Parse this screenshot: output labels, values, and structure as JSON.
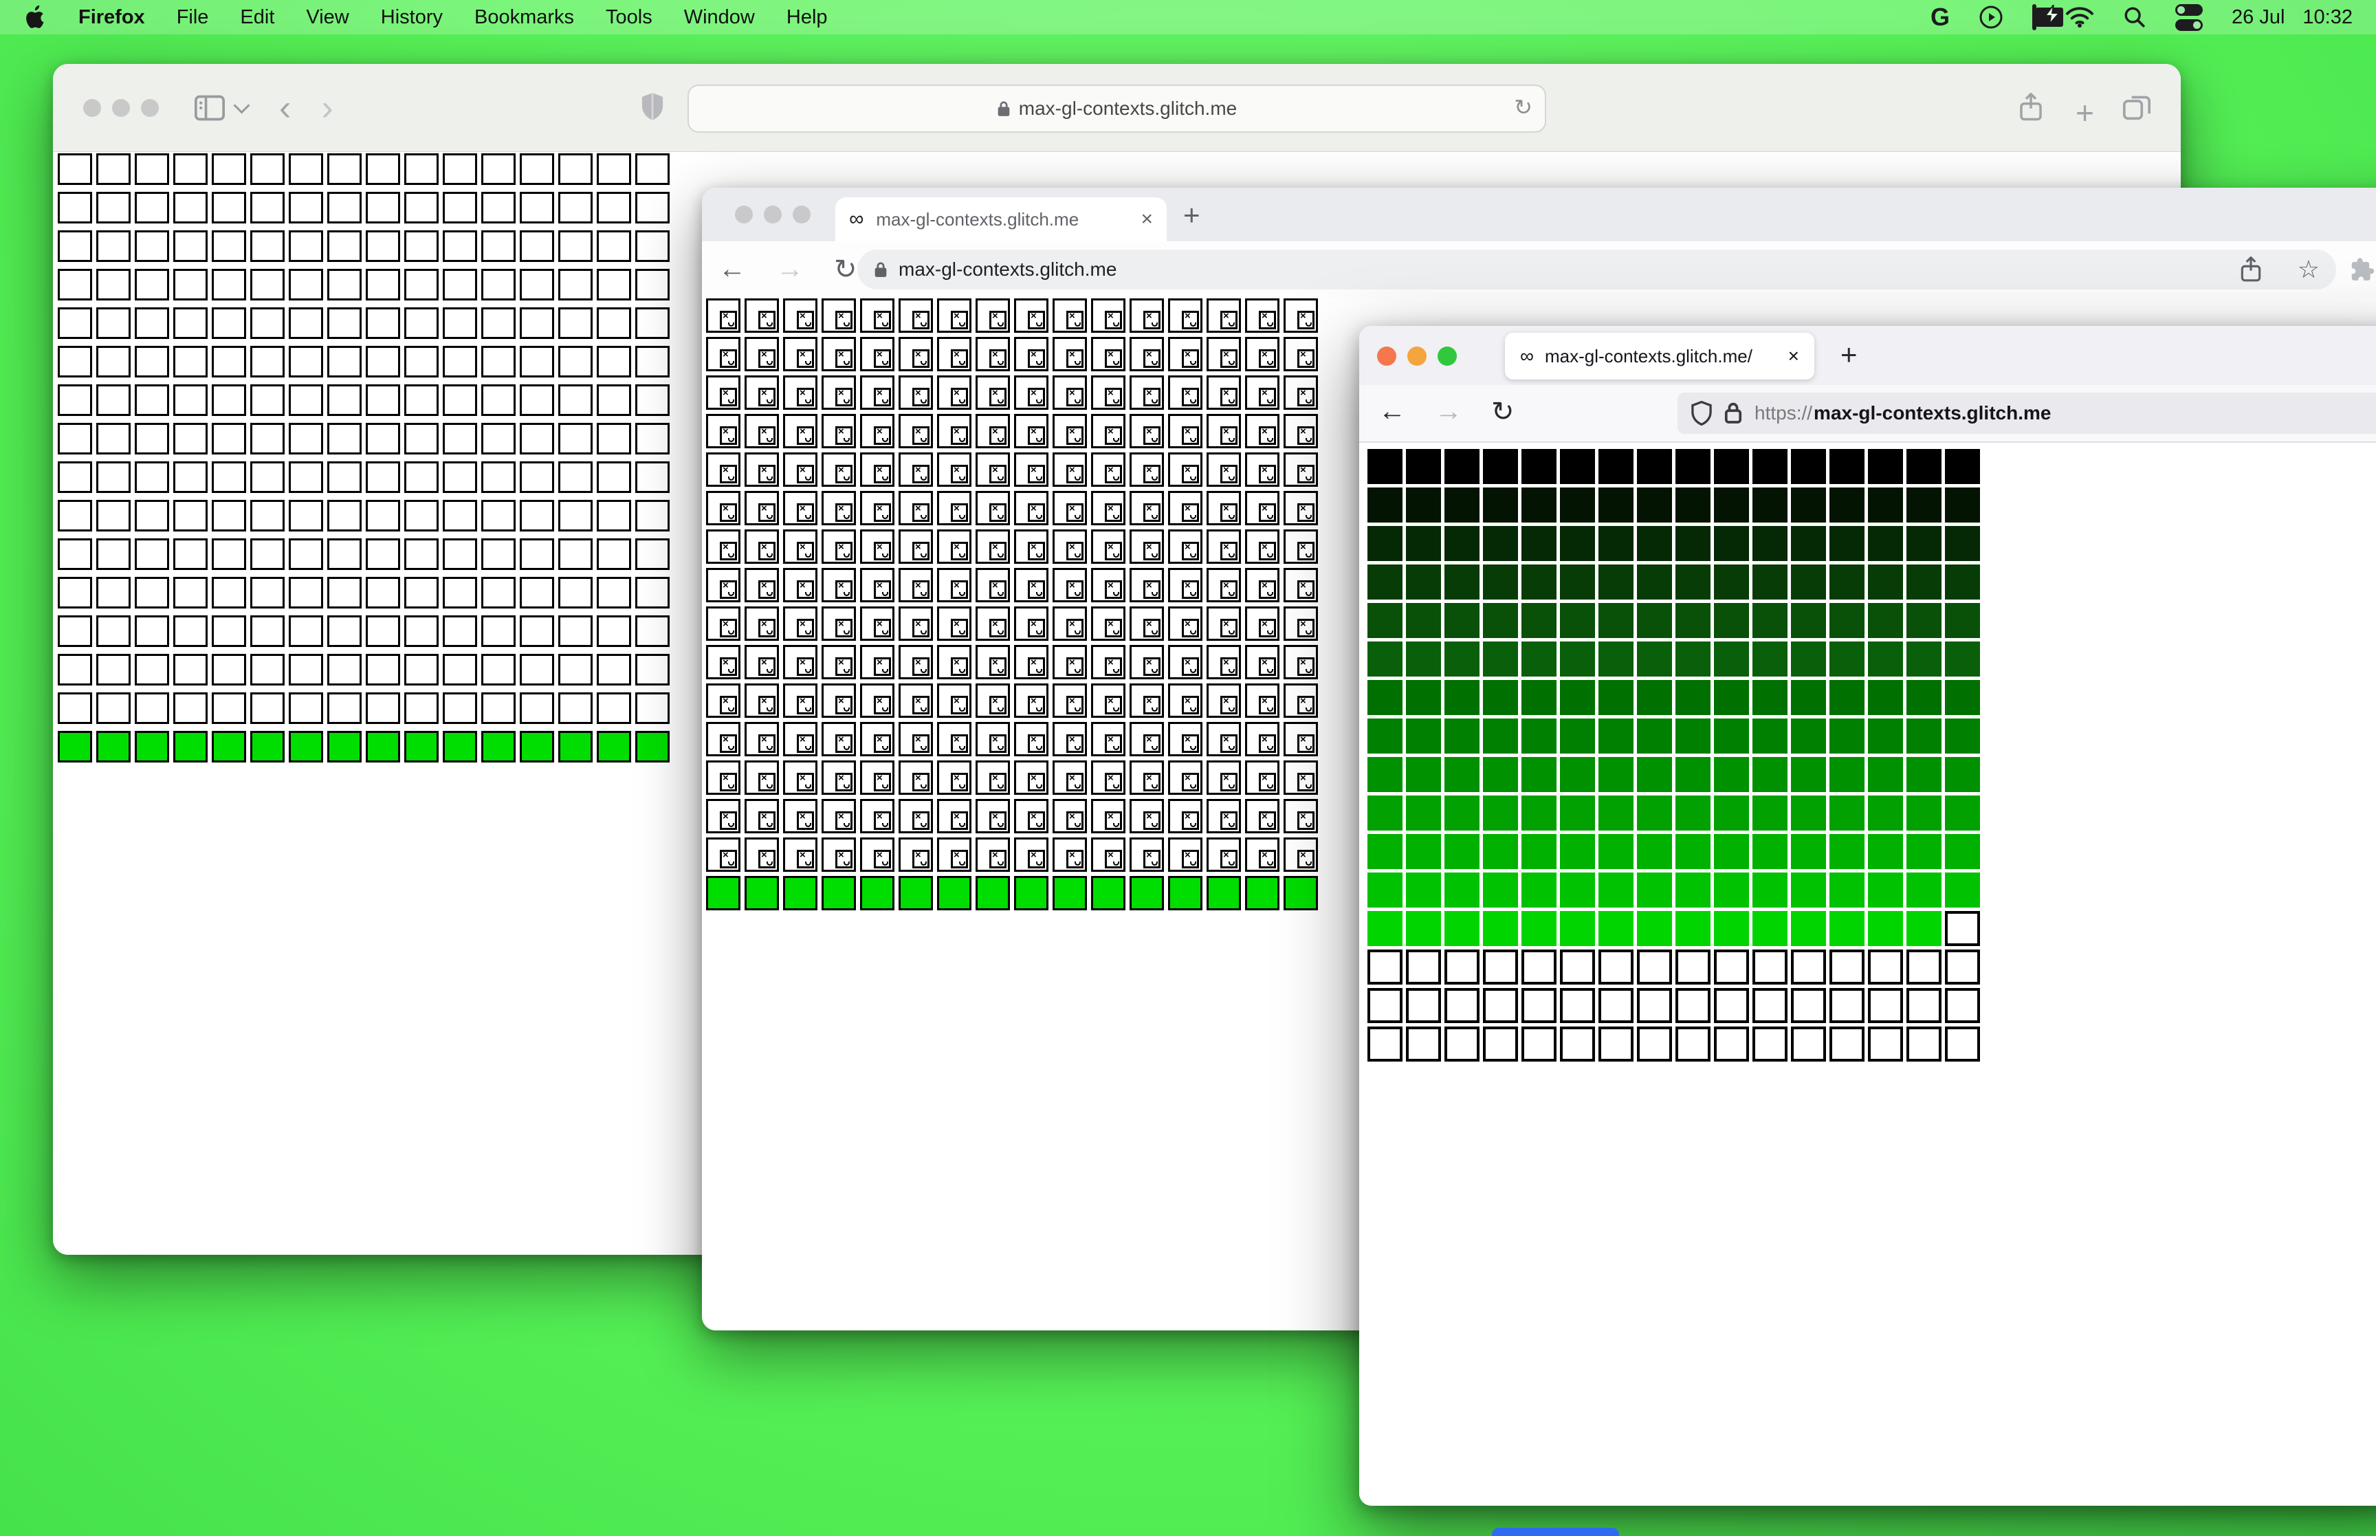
{
  "menu_bar": {
    "app_name": "Firefox",
    "items": [
      "File",
      "Edit",
      "View",
      "History",
      "Bookmarks",
      "Tools",
      "Window",
      "Help"
    ],
    "google_letter": "G",
    "date": "26 Jul",
    "time": "10:32",
    "status_icon_names": [
      "google-icon",
      "play-circle-icon",
      "battery-charging-icon",
      "wifi-icon",
      "search-icon",
      "control-center-icon"
    ]
  },
  "safari": {
    "url": "max-gl-contexts.glitch.me",
    "reload_glyph": "↻",
    "back_glyph": "‹",
    "forward_glyph": "›",
    "new_tab_glyph": "+",
    "traffic_light_color": "#c9c9c9"
  },
  "chrome": {
    "tab_title": "max-gl-contexts.glitch.me",
    "tab_favicon": "∞",
    "tab_close_glyph": "×",
    "new_tab_glyph": "+",
    "url": "max-gl-contexts.glitch.me",
    "back_glyph": "←",
    "forward_glyph": "→",
    "reload_glyph": "↻",
    "bookmark_star_glyph": "☆",
    "traffic_light_color": "#c9c9cb"
  },
  "firefox": {
    "tab_title": "max-gl-contexts.glitch.me/",
    "tab_favicon": "∞",
    "tab_close_glyph": "×",
    "new_tab_glyph": "+",
    "url_scheme": "https://",
    "url_domain": "max-gl-contexts.glitch.me",
    "back_glyph": "←",
    "forward_glyph": "→",
    "reload_glyph": "↻",
    "traffic_light_colors": [
      "#f4774e",
      "#f4a53d",
      "#31c83e"
    ]
  },
  "grids": {
    "safari": {
      "columns": 16,
      "rows": 16,
      "empty_rows": 15,
      "green_row_index": 15,
      "green_color": "#00dd00",
      "empty_fill": "#ffffff",
      "cell_border": "#000000"
    },
    "chrome": {
      "columns": 16,
      "rows": 16,
      "broken_image_rows": 15,
      "green_row_index": 15,
      "green_color": "#00dd00",
      "broken_glyph": "×"
    },
    "firefox": {
      "columns": 16,
      "rows": 16,
      "gradient_rows": 13,
      "white_rows": 3,
      "white_cells_in_last_gradient_row": [
        15
      ],
      "gradient_colors": [
        "#000000",
        "#031403",
        "#052805",
        "#073c07",
        "#095009",
        "#0a5f0a",
        "#007000",
        "#008000",
        "#009100",
        "#00a100",
        "#00b100",
        "#00c200",
        "#00d500"
      ]
    }
  },
  "dock_sliver_color": "#2e6bf2"
}
